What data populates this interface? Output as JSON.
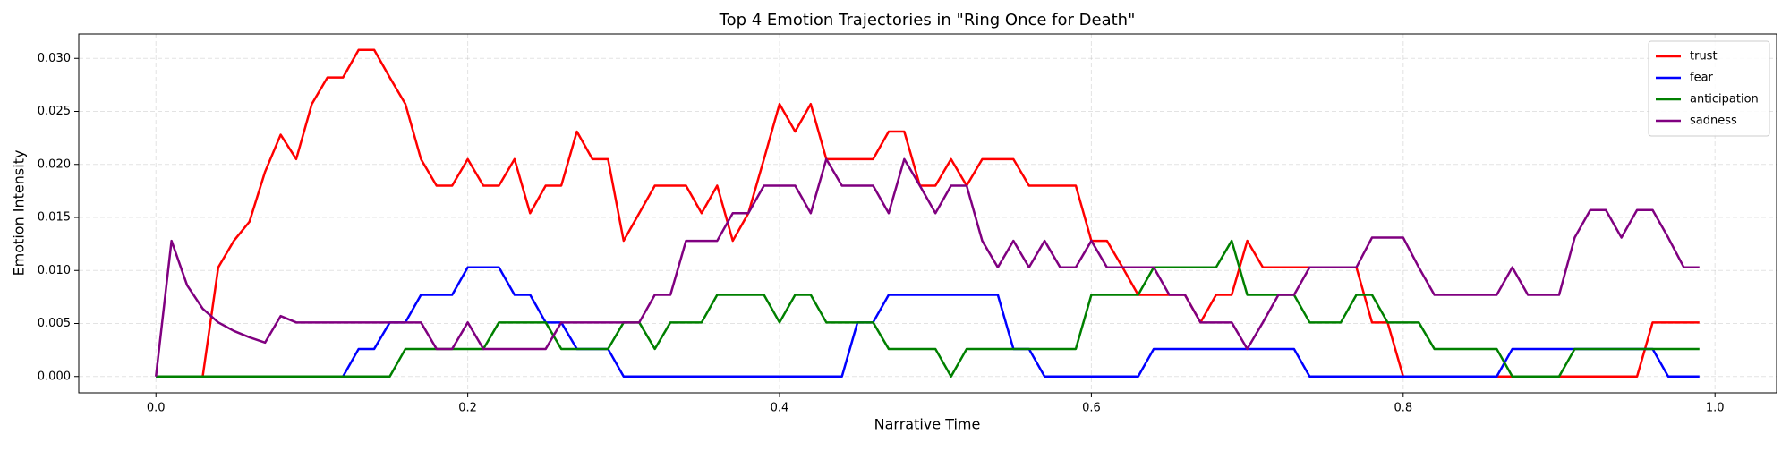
{
  "chart_data": {
    "type": "line",
    "title": "Top 4 Emotion Trajectories in \"Ring Once for Death\"",
    "x_label": "Narrative Time",
    "y_label": "Emotion Intensity",
    "x": [
      0,
      0.01,
      0.02,
      0.03,
      0.04,
      0.05,
      0.06,
      0.07,
      0.08,
      0.09,
      0.1,
      0.11,
      0.12,
      0.13,
      0.14,
      0.15,
      0.16,
      0.17,
      0.18,
      0.19,
      0.2,
      0.21,
      0.22,
      0.23,
      0.24,
      0.25,
      0.26,
      0.27,
      0.28,
      0.29,
      0.3,
      0.31,
      0.32,
      0.33,
      0.34,
      0.35,
      0.36,
      0.37,
      0.38,
      0.39,
      0.4,
      0.41,
      0.42,
      0.43,
      0.44,
      0.45,
      0.46,
      0.47,
      0.48,
      0.49,
      0.5,
      0.51,
      0.52,
      0.53,
      0.54,
      0.55,
      0.56,
      0.57,
      0.58,
      0.59,
      0.6,
      0.61,
      0.62,
      0.63,
      0.64,
      0.65,
      0.66,
      0.67,
      0.68,
      0.69,
      0.7,
      0.71,
      0.72,
      0.73,
      0.74,
      0.75,
      0.76,
      0.77,
      0.78,
      0.79,
      0.8,
      0.81,
      0.82,
      0.83,
      0.84,
      0.85,
      0.86,
      0.87,
      0.88,
      0.89,
      0.9,
      0.91,
      0.92,
      0.93,
      0.94,
      0.95,
      0.96,
      0.97,
      0.98,
      0.99
    ],
    "series": [
      {
        "name": "trust",
        "color": "#ff0000",
        "values": [
          0,
          0,
          0,
          0,
          0.0103,
          0.0128,
          0.0146,
          0.0193,
          0.0228,
          0.0205,
          0.0257,
          0.0282,
          0.0282,
          0.0308,
          0.0308,
          0.0282,
          0.0257,
          0.0205,
          0.018,
          0.018,
          0.0205,
          0.018,
          0.018,
          0.0205,
          0.0154,
          0.018,
          0.018,
          0.0231,
          0.0205,
          0.0205,
          0.0128,
          0.0154,
          0.018,
          0.018,
          0.018,
          0.0154,
          0.018,
          0.0128,
          0.0154,
          0.0205,
          0.0257,
          0.0231,
          0.0257,
          0.0205,
          0.0205,
          0.0205,
          0.0205,
          0.0231,
          0.0231,
          0.018,
          0.018,
          0.0205,
          0.018,
          0.0205,
          0.0205,
          0.0205,
          0.018,
          0.018,
          0.018,
          0.018,
          0.0128,
          0.0128,
          0.0103,
          0.0077,
          0.0077,
          0.0077,
          0.0077,
          0.0051,
          0.0077,
          0.0077,
          0.0128,
          0.0103,
          0.0103,
          0.0103,
          0.0103,
          0.0103,
          0.0103,
          0.0103,
          0.0051,
          0.0051,
          0,
          0,
          0,
          0,
          0,
          0,
          0,
          0,
          0,
          0,
          0,
          0,
          0,
          0,
          0,
          0,
          0.0051,
          0.0051,
          0.0051,
          0.0051
        ]
      },
      {
        "name": "fear",
        "color": "#0000ff",
        "values": [
          0,
          0,
          0,
          0,
          0,
          0,
          0,
          0,
          0,
          0,
          0,
          0,
          0,
          0.0026,
          0.0026,
          0.0051,
          0.0051,
          0.0077,
          0.0077,
          0.0077,
          0.0103,
          0.0103,
          0.0103,
          0.0077,
          0.0077,
          0.0051,
          0.0051,
          0.0026,
          0.0026,
          0.0026,
          0,
          0,
          0,
          0,
          0,
          0,
          0,
          0,
          0,
          0,
          0,
          0,
          0,
          0,
          0,
          0.0051,
          0.0051,
          0.0077,
          0.0077,
          0.0077,
          0.0077,
          0.0077,
          0.0077,
          0.0077,
          0.0077,
          0.0026,
          0.0026,
          0,
          0,
          0,
          0,
          0,
          0,
          0,
          0.0026,
          0.0026,
          0.0026,
          0.0026,
          0.0026,
          0.0026,
          0.0026,
          0.0026,
          0.0026,
          0.0026,
          0,
          0,
          0,
          0,
          0,
          0,
          0,
          0,
          0,
          0,
          0,
          0,
          0,
          0.0026,
          0.0026,
          0.0026,
          0.0026,
          0.0026,
          0.0026,
          0.0026,
          0.0026,
          0.0026,
          0.0026,
          0,
          0,
          0
        ]
      },
      {
        "name": "anticipation",
        "color": "#008000",
        "values": [
          0,
          0,
          0,
          0,
          0,
          0,
          0,
          0,
          0,
          0,
          0,
          0,
          0,
          0,
          0,
          0,
          0.0026,
          0.0026,
          0.0026,
          0.0026,
          0.0026,
          0.0026,
          0.0051,
          0.0051,
          0.0051,
          0.0051,
          0.0026,
          0.0026,
          0.0026,
          0.0026,
          0.0051,
          0.0051,
          0.0026,
          0.0051,
          0.0051,
          0.0051,
          0.0077,
          0.0077,
          0.0077,
          0.0077,
          0.0051,
          0.0077,
          0.0077,
          0.0051,
          0.0051,
          0.0051,
          0.0051,
          0.0026,
          0.0026,
          0.0026,
          0.0026,
          0,
          0.0026,
          0.0026,
          0.0026,
          0.0026,
          0.0026,
          0.0026,
          0.0026,
          0.0026,
          0.0077,
          0.0077,
          0.0077,
          0.0077,
          0.0103,
          0.0103,
          0.0103,
          0.0103,
          0.0103,
          0.0128,
          0.0077,
          0.0077,
          0.0077,
          0.0077,
          0.0051,
          0.0051,
          0.0051,
          0.0077,
          0.0077,
          0.0051,
          0.0051,
          0.0051,
          0.0026,
          0.0026,
          0.0026,
          0.0026,
          0.0026,
          0,
          0,
          0,
          0,
          0.0026,
          0.0026,
          0.0026,
          0.0026,
          0.0026,
          0.0026,
          0.0026,
          0.0026,
          0.0026
        ]
      },
      {
        "name": "sadness",
        "color": "#800080",
        "values": [
          0,
          0.0128,
          0.0086,
          0.0064,
          0.0051,
          0.0043,
          0.0037,
          0.0032,
          0.0057,
          0.0051,
          0.0051,
          0.0051,
          0.0051,
          0.0051,
          0.0051,
          0.0051,
          0.0051,
          0.0051,
          0.0026,
          0.0026,
          0.0051,
          0.0026,
          0.0026,
          0.0026,
          0.0026,
          0.0026,
          0.0051,
          0.0051,
          0.0051,
          0.0051,
          0.0051,
          0.0051,
          0.0077,
          0.0077,
          0.0128,
          0.0128,
          0.0128,
          0.0154,
          0.0154,
          0.018,
          0.018,
          0.018,
          0.0154,
          0.0205,
          0.018,
          0.018,
          0.018,
          0.0154,
          0.0205,
          0.018,
          0.0154,
          0.018,
          0.018,
          0.0128,
          0.0103,
          0.0128,
          0.0103,
          0.0128,
          0.0103,
          0.0103,
          0.0128,
          0.0103,
          0.0103,
          0.0103,
          0.0103,
          0.0077,
          0.0077,
          0.0051,
          0.0051,
          0.0051,
          0.0026,
          0.0051,
          0.0077,
          0.0077,
          0.0103,
          0.0103,
          0.0103,
          0.0103,
          0.0131,
          0.0131,
          0.0131,
          0.0103,
          0.0077,
          0.0077,
          0.0077,
          0.0077,
          0.0077,
          0.0103,
          0.0077,
          0.0077,
          0.0077,
          0.0131,
          0.0157,
          0.0157,
          0.0131,
          0.0157,
          0.0157,
          0.0131,
          0.0103,
          0.0103
        ]
      }
    ],
    "xlim": [
      -0.0495,
      1.0395
    ],
    "ylim": [
      -0.00154,
      0.0323
    ],
    "xticks": [
      {
        "value": 0,
        "label": "0.0"
      },
      0.2,
      0.4,
      0.6,
      0.8,
      {
        "value": 1,
        "label": "1.0"
      }
    ],
    "yticks": [
      {
        "value": 0,
        "label": "0.000"
      },
      {
        "value": 0.005,
        "label": "0.005"
      },
      {
        "value": 0.01,
        "label": "0.010"
      },
      {
        "value": 0.015,
        "label": "0.015"
      },
      {
        "value": 0.02,
        "label": "0.020"
      },
      {
        "value": 0.025,
        "label": "0.025"
      },
      {
        "value": 0.03,
        "label": "0.030"
      }
    ],
    "grid": true,
    "legend": "upper right"
  }
}
